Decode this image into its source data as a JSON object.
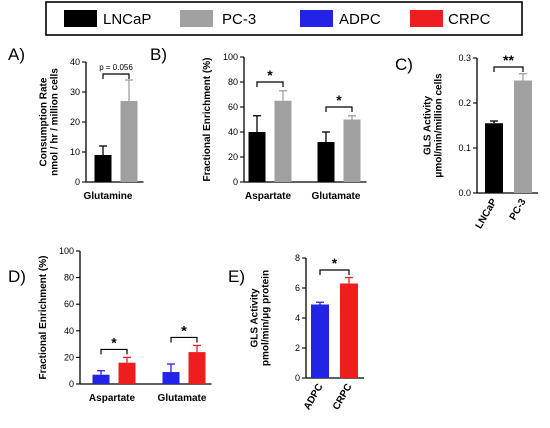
{
  "colors": {
    "LNCaP": "#000000",
    "PC-3": "#a0a0a0",
    "ADPC": "#2323e6",
    "CRPC": "#ee1e1e"
  },
  "legend": [
    "LNCaP",
    "PC-3",
    "ADPC",
    "CRPC"
  ],
  "chart_data": [
    {
      "panel": "A)",
      "type": "bar",
      "ylabel": "Consumption Rate\nnmol / hr / million cells",
      "ylim": [
        0,
        40
      ],
      "yticks": [
        "0",
        "10",
        "20",
        "30",
        "40"
      ],
      "categories": [
        "Glutamine"
      ],
      "series": [
        {
          "name": "LNCaP",
          "values": [
            9
          ],
          "errors": [
            3
          ]
        },
        {
          "name": "PC-3",
          "values": [
            27
          ],
          "errors": [
            7
          ]
        }
      ],
      "annotations": [
        {
          "text": "p = 0.056",
          "category": 0
        }
      ]
    },
    {
      "panel": "B)",
      "type": "bar",
      "ylabel": "Fractional Enrichment (%)",
      "ylim": [
        0,
        100
      ],
      "yticks": [
        "0",
        "20",
        "40",
        "60",
        "80",
        "100"
      ],
      "categories": [
        "Aspartate",
        "Glutamate"
      ],
      "series": [
        {
          "name": "LNCaP",
          "values": [
            40,
            32
          ],
          "errors": [
            13,
            8
          ]
        },
        {
          "name": "PC-3",
          "values": [
            65,
            50
          ],
          "errors": [
            8,
            3
          ]
        }
      ],
      "annotations": [
        {
          "text": "*",
          "category": 0
        },
        {
          "text": "*",
          "category": 1
        }
      ]
    },
    {
      "panel": "C)",
      "type": "bar",
      "ylabel": "GLS Activity\nμmol/min/million cells",
      "ylim": [
        0,
        0.3
      ],
      "yticks": [
        "0.0",
        "0.1",
        "0.2",
        "0.3"
      ],
      "categories": [
        "LNCaP",
        "PC-3"
      ],
      "values": [
        0.155,
        0.25
      ],
      "errors": [
        0.005,
        0.015
      ],
      "annotations": [
        {
          "text": "**"
        }
      ]
    },
    {
      "panel": "D)",
      "type": "bar",
      "ylabel": "Fractional Enrichment (%)",
      "ylim": [
        0,
        100
      ],
      "yticks": [
        "0",
        "20",
        "40",
        "60",
        "80",
        "100"
      ],
      "categories": [
        "Aspartate",
        "Glutamate"
      ],
      "series": [
        {
          "name": "ADPC",
          "values": [
            7,
            9
          ],
          "errors": [
            3,
            6
          ]
        },
        {
          "name": "CRPC",
          "values": [
            16,
            24
          ],
          "errors": [
            4,
            5
          ]
        }
      ],
      "annotations": [
        {
          "text": "*",
          "category": 0
        },
        {
          "text": "*",
          "category": 1
        }
      ]
    },
    {
      "panel": "E)",
      "type": "bar",
      "ylabel": "GLS Activity\npmol/min/μg protein",
      "ylim": [
        0,
        8
      ],
      "yticks": [
        "0",
        "2",
        "4",
        "6",
        "8"
      ],
      "categories": [
        "ADPC",
        "CRPC"
      ],
      "values": [
        4.9,
        6.3
      ],
      "errors": [
        0.15,
        0.4
      ],
      "annotations": [
        {
          "text": "*"
        }
      ]
    }
  ]
}
